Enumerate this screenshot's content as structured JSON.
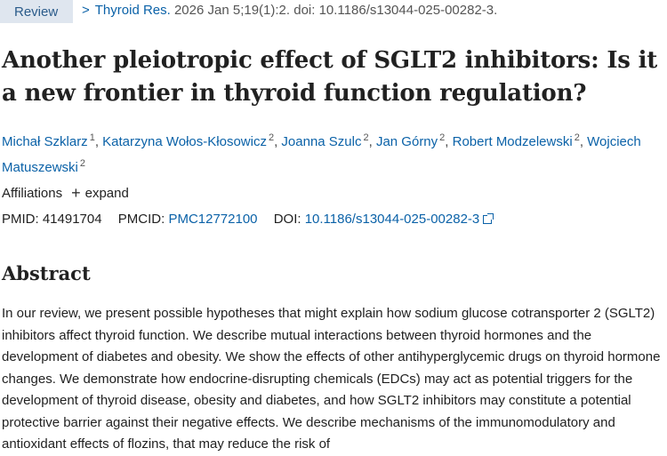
{
  "header": {
    "review_label": "Review",
    "journal": "Thyroid Res.",
    "citation_rest": "2026 Jan 5;19(1):2. doi: 10.1186/s13044-025-00282-3."
  },
  "article": {
    "title": "Another pleiotropic effect of SGLT2 inhibitors: Is it a new frontier in thyroid function regulation?",
    "authors": [
      {
        "name": "Michał Szklarz",
        "aff": "1"
      },
      {
        "name": "Katarzyna Wołos-Kłosowicz",
        "aff": "2"
      },
      {
        "name": "Joanna Szulc",
        "aff": "2"
      },
      {
        "name": "Jan Górny",
        "aff": "2"
      },
      {
        "name": "Robert Modzelewski",
        "aff": "2"
      },
      {
        "name": "Wojciech Matuszewski",
        "aff": "2"
      }
    ],
    "affiliations_label": "Affiliations",
    "expand_label": "expand",
    "pmid_label": "PMID:",
    "pmid": "41491704",
    "pmcid_label": "PMCID:",
    "pmcid": "PMC12772100",
    "doi_label": "DOI:",
    "doi": "10.1186/s13044-025-00282-3"
  },
  "abstract": {
    "heading": "Abstract",
    "text": "In our review, we present possible hypotheses that might explain how sodium glucose cotransporter 2 (SGLT2) inhibitors affect thyroid function. We describe mutual interactions between thyroid hormones and the development of diabetes and obesity. We show the effects of other antihyperglycemic drugs on thyroid hormone changes. We demonstrate how endocrine-disrupting chemicals (EDCs) may act as potential triggers for the development of thyroid disease, obesity and diabetes, and how SGLT2 inhibitors may constitute a potential protective barrier against their negative effects. We describe mechanisms of the immunomodulatory and antioxidant effects of flozins, that may reduce the risk of"
  },
  "colors": {
    "link": "#0b62a8",
    "review_bg": "#dfe6ef",
    "text": "#212121"
  }
}
